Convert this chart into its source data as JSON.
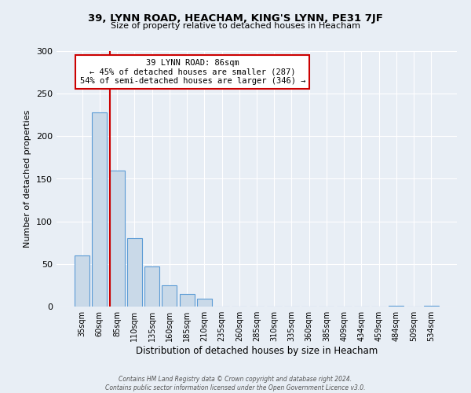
{
  "title": "39, LYNN ROAD, HEACHAM, KING'S LYNN, PE31 7JF",
  "subtitle": "Size of property relative to detached houses in Heacham",
  "xlabel": "Distribution of detached houses by size in Heacham",
  "ylabel": "Number of detached properties",
  "bin_labels": [
    "35sqm",
    "60sqm",
    "85sqm",
    "110sqm",
    "135sqm",
    "160sqm",
    "185sqm",
    "210sqm",
    "235sqm",
    "260sqm",
    "285sqm",
    "310sqm",
    "335sqm",
    "360sqm",
    "385sqm",
    "409sqm",
    "434sqm",
    "459sqm",
    "484sqm",
    "509sqm",
    "534sqm"
  ],
  "bar_values": [
    60,
    228,
    160,
    80,
    47,
    25,
    15,
    9,
    0,
    0,
    0,
    0,
    0,
    0,
    0,
    0,
    0,
    0,
    1,
    0,
    1
  ],
  "bar_color": "#c9d9e8",
  "bar_edge_color": "#5b9bd5",
  "vline_color": "#cc0000",
  "annotation_text": "39 LYNN ROAD: 86sqm\n← 45% of detached houses are smaller (287)\n54% of semi-detached houses are larger (346) →",
  "annotation_box_color": "#ffffff",
  "annotation_box_edge_color": "#cc0000",
  "ylim": [
    0,
    300
  ],
  "yticks": [
    0,
    50,
    100,
    150,
    200,
    250,
    300
  ],
  "footer_line1": "Contains HM Land Registry data © Crown copyright and database right 2024.",
  "footer_line2": "Contains public sector information licensed under the Open Government Licence v3.0.",
  "background_color": "#e8eef5",
  "plot_bg_color": "#e8eef5",
  "grid_color": "#ffffff"
}
